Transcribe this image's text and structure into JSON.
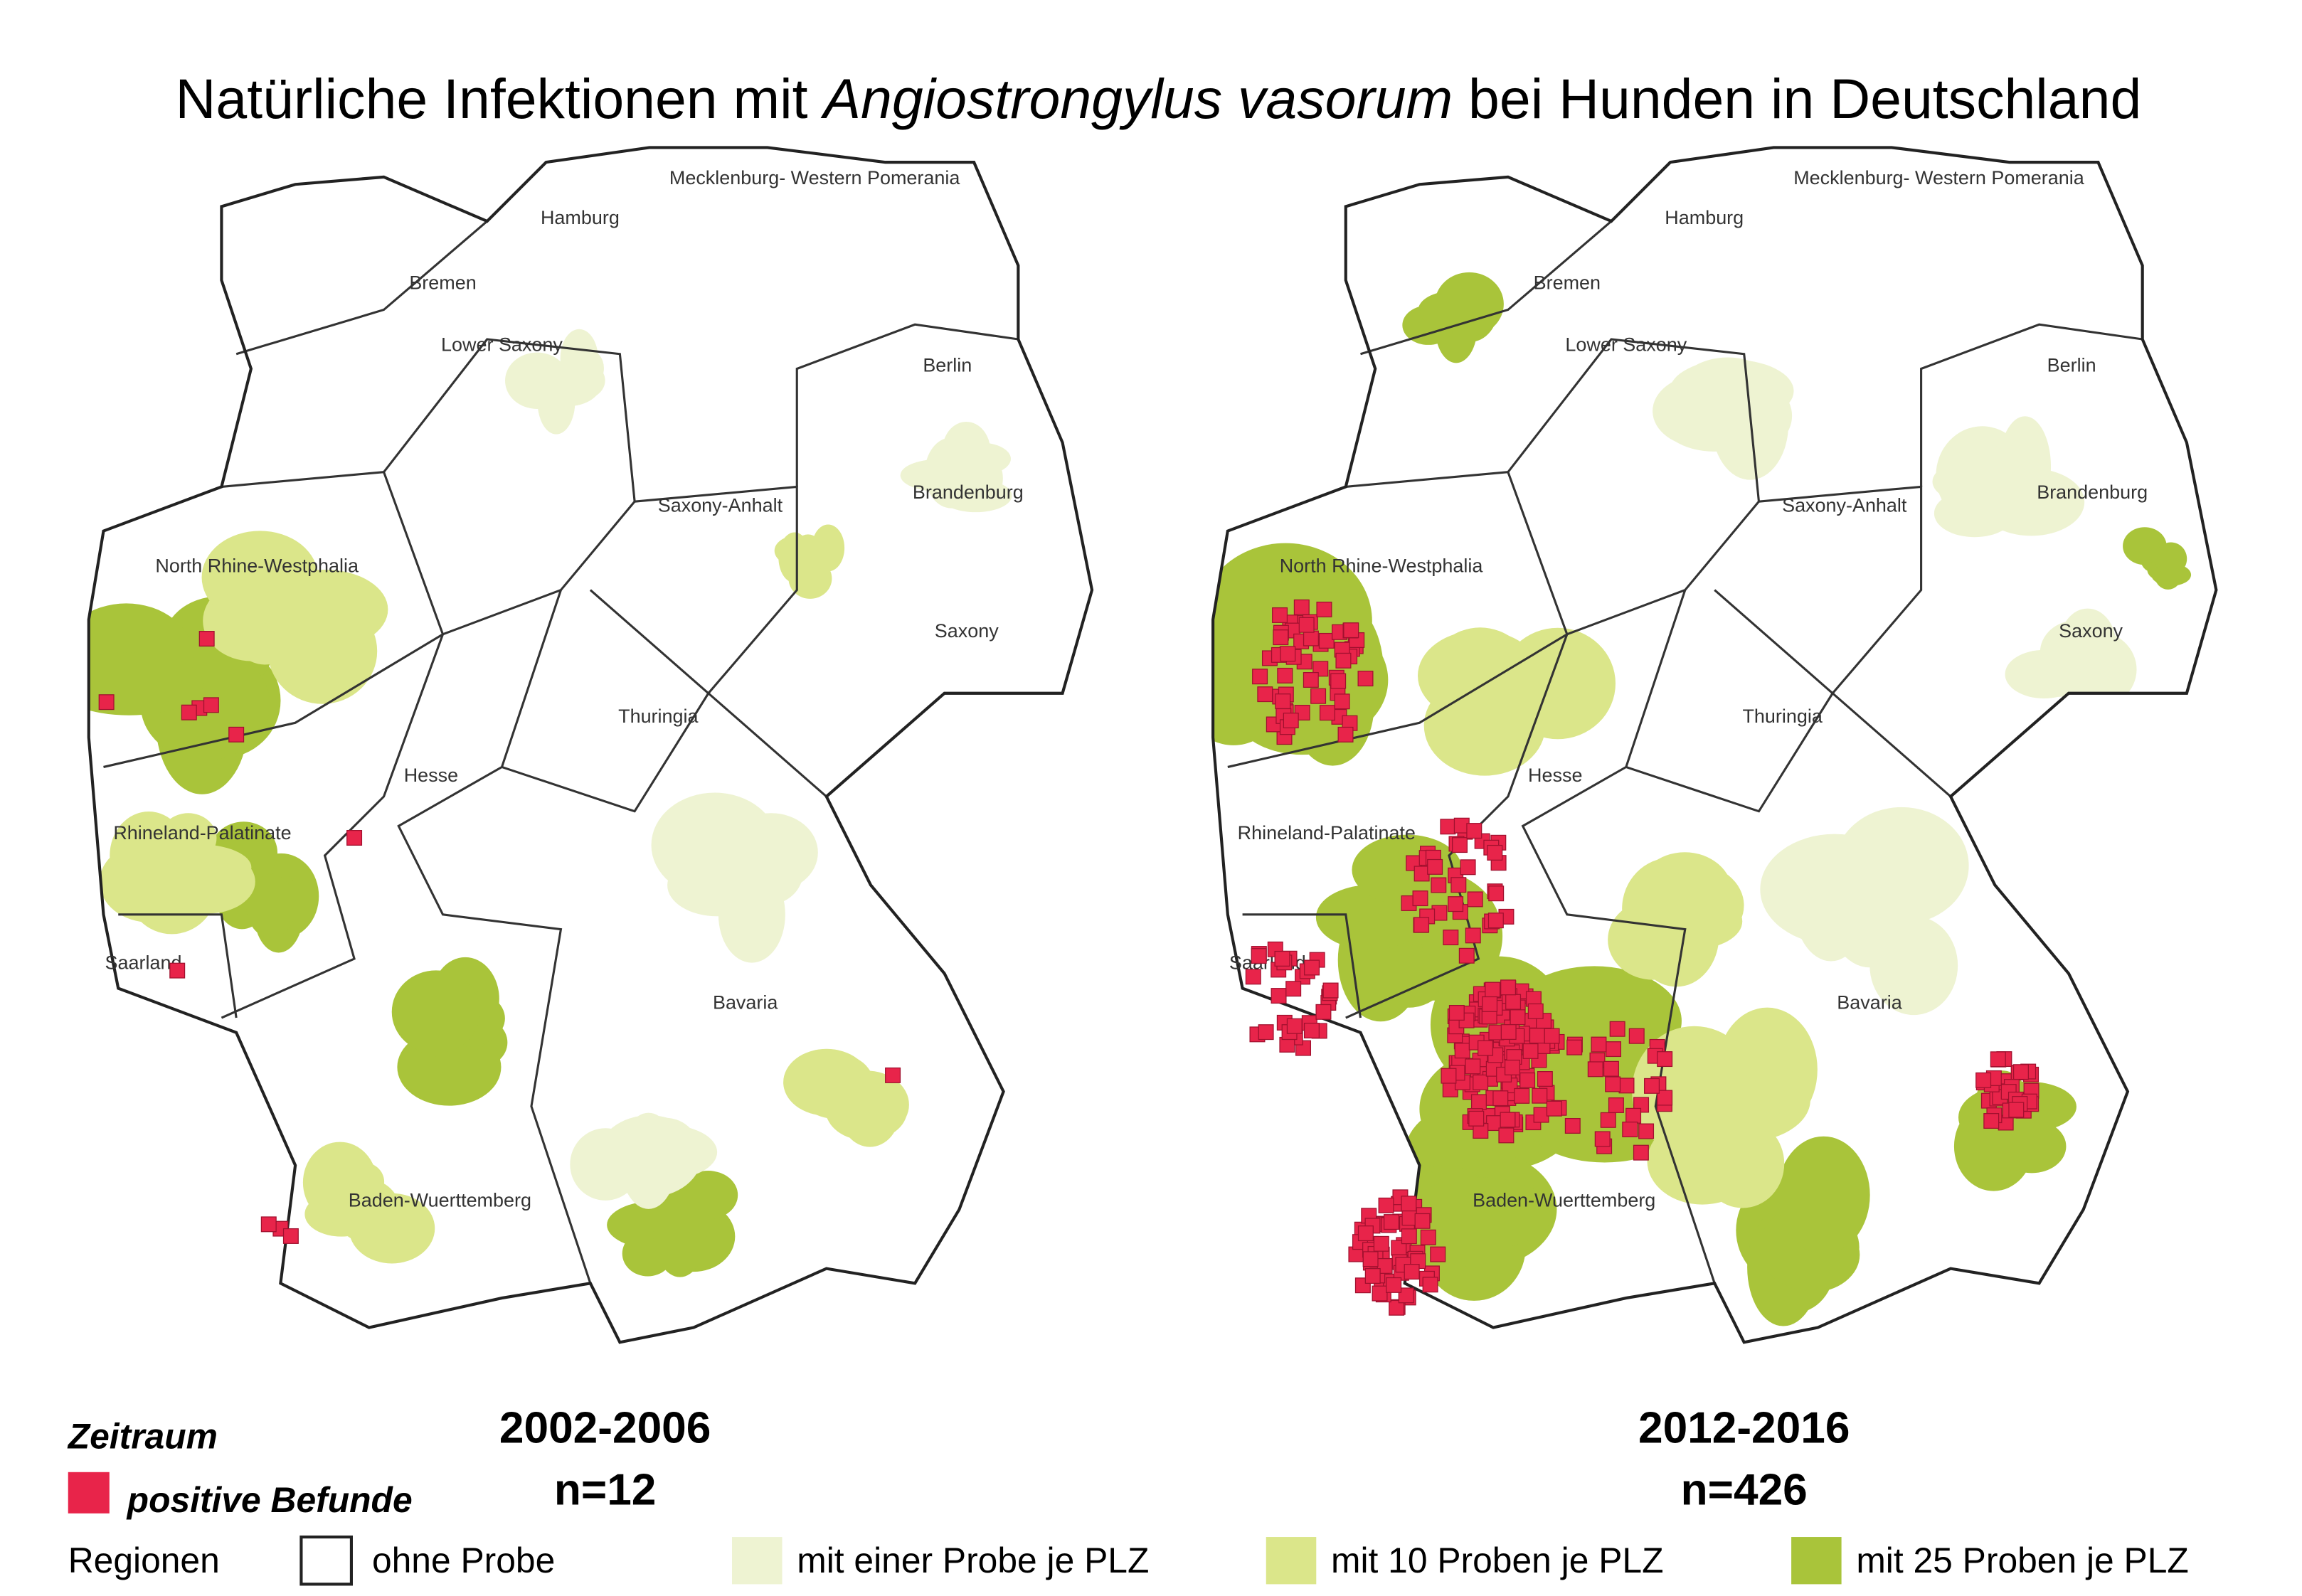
{
  "title": {
    "before": "Natürliche Infektionen mit ",
    "italic": "Angiostrongylus vasorum",
    "after": " bei Hunden in Deutschland"
  },
  "regions": [
    "Mecklenburg- Western Pomerania",
    "Hamburg",
    "Bremen",
    "Lower Saxony",
    "Berlin",
    "Brandenburg",
    "Saxony-Anhalt",
    "North Rhine-Westphalia",
    "Saxony",
    "Thuringia",
    "Hesse",
    "Rhineland-Palatinate",
    "Saarland",
    "Bavaria",
    "Baden-Wuerttemberg"
  ],
  "panels": [
    {
      "period": "2002-2006",
      "n": "n=12"
    },
    {
      "period": "2012-2016",
      "n": "n=426"
    }
  ],
  "legend": {
    "heading": "Zeitraum",
    "positive": "positive Befunde",
    "regions_label": "Regionen",
    "items": [
      "ohne Probe",
      "mit einer Probe je PLZ",
      "mit 10 Proben je PLZ",
      "mit 25 Proben je PLZ"
    ]
  }
}
